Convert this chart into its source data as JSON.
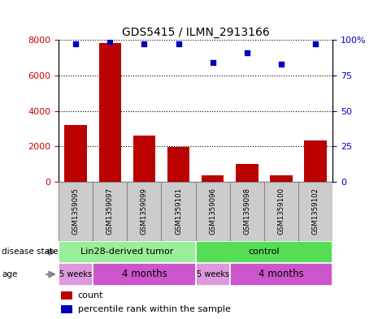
{
  "title": "GDS5415 / ILMN_2913166",
  "samples": [
    "GSM1359095",
    "GSM1359097",
    "GSM1359099",
    "GSM1359101",
    "GSM1359096",
    "GSM1359098",
    "GSM1359100",
    "GSM1359102"
  ],
  "counts": [
    3200,
    7800,
    2600,
    1950,
    380,
    1020,
    380,
    2350
  ],
  "percentile_ranks": [
    97,
    99,
    97,
    97,
    84,
    91,
    83,
    97
  ],
  "ylim_left": [
    0,
    8000
  ],
  "ylim_right": [
    0,
    100
  ],
  "yticks_left": [
    0,
    2000,
    4000,
    6000,
    8000
  ],
  "yticks_right": [
    0,
    25,
    50,
    75,
    100
  ],
  "bar_color": "#bb0000",
  "dot_color": "#0000bb",
  "disease_state_groups": [
    {
      "label": "Lin28-derived tumor",
      "start": 0,
      "end": 4,
      "color": "#99ee99"
    },
    {
      "label": "control",
      "start": 4,
      "end": 8,
      "color": "#55dd55"
    }
  ],
  "age_groups": [
    {
      "label": "5 weeks",
      "start": 0,
      "end": 1,
      "color": "#dd99dd"
    },
    {
      "label": "4 months",
      "start": 1,
      "end": 4,
      "color": "#cc55cc"
    },
    {
      "label": "5 weeks",
      "start": 4,
      "end": 5,
      "color": "#dd99dd"
    },
    {
      "label": "4 months",
      "start": 5,
      "end": 8,
      "color": "#cc55cc"
    }
  ],
  "tick_label_color_left": "#cc0000",
  "tick_label_color_right": "#0000cc",
  "sample_box_color": "#cccccc",
  "sample_box_edge": "#888888"
}
